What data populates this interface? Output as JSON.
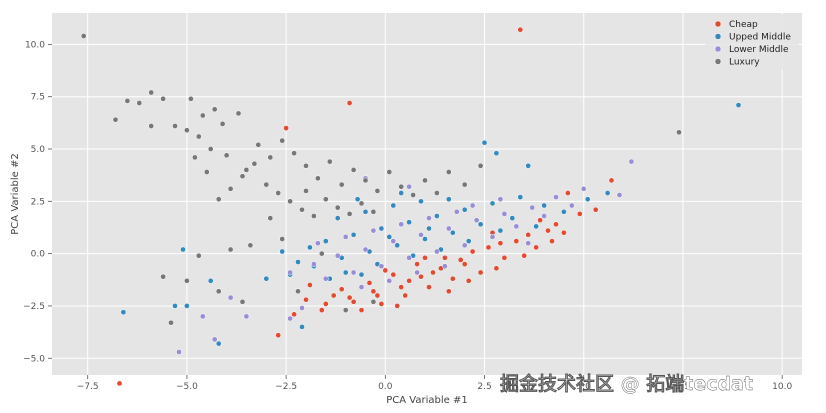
{
  "chart_data": {
    "type": "scatter",
    "title": "",
    "xlabel": "PCA Variable #1",
    "ylabel": "PCA Variable #2",
    "xlim": [
      -8.4,
      10.5
    ],
    "ylim": [
      -5.8,
      11.5
    ],
    "xticks": [
      -7.5,
      -5.0,
      -2.5,
      0.0,
      2.5,
      5.0,
      7.5,
      10.0
    ],
    "xtick_labels": [
      "−7.5",
      "−5.0",
      "−2.5",
      "0.0",
      "2.5",
      "5.0",
      "7.5",
      "10.0"
    ],
    "yticks": [
      -5.0,
      -2.5,
      0.0,
      2.5,
      5.0,
      7.5,
      10.0
    ],
    "ytick_labels": [
      "−5.0",
      "−2.5",
      "0.0",
      "2.5",
      "5.0",
      "7.5",
      "10.0"
    ],
    "grid": true,
    "legend_position": "top-right",
    "series": [
      {
        "name": "Cheap",
        "color": "#E24A33",
        "points": [
          [
            3.4,
            10.7
          ],
          [
            -0.9,
            7.2
          ],
          [
            -2.5,
            6.0
          ],
          [
            -6.7,
            -6.2
          ],
          [
            -2.7,
            -3.9
          ],
          [
            4.6,
            2.9
          ],
          [
            5.7,
            3.5
          ],
          [
            5.3,
            2.1
          ],
          [
            4.1,
            1.1
          ],
          [
            3.3,
            0.6
          ],
          [
            2.6,
            0.3
          ],
          [
            1.9,
            -0.3
          ],
          [
            1.4,
            -0.7
          ],
          [
            0.9,
            -1.1
          ],
          [
            0.4,
            -1.6
          ],
          [
            -0.2,
            -2.0
          ],
          [
            -0.8,
            -2.3
          ],
          [
            -1.5,
            -2.4
          ],
          [
            -2.0,
            -2.2
          ],
          [
            -1.1,
            -1.7
          ],
          [
            -0.4,
            -1.4
          ],
          [
            0.2,
            -1.0
          ],
          [
            0.8,
            -0.5
          ],
          [
            1.5,
            -0.2
          ],
          [
            2.2,
            0.1
          ],
          [
            2.9,
            0.5
          ],
          [
            3.6,
            0.9
          ],
          [
            4.3,
            1.4
          ],
          [
            4.9,
            1.9
          ],
          [
            2.4,
            -0.9
          ],
          [
            1.7,
            -1.2
          ],
          [
            1.1,
            -1.6
          ],
          [
            0.5,
            -2.0
          ],
          [
            -0.1,
            -2.4
          ],
          [
            -0.6,
            -2.7
          ],
          [
            -1.3,
            -2.0
          ],
          [
            -1.9,
            -1.5
          ],
          [
            3.0,
            -0.2
          ],
          [
            3.8,
            0.3
          ],
          [
            4.5,
            1.0
          ],
          [
            2.0,
            -0.5
          ],
          [
            1.2,
            -0.9
          ],
          [
            0.6,
            -1.3
          ],
          [
            -0.3,
            -1.8
          ],
          [
            -0.9,
            -2.1
          ],
          [
            3.9,
            1.6
          ],
          [
            2.7,
            1.0
          ],
          [
            1.0,
            -0.2
          ],
          [
            0.0,
            -0.8
          ],
          [
            -2.3,
            -2.9
          ],
          [
            1.6,
            -1.8
          ],
          [
            2.1,
            -1.3
          ],
          [
            2.8,
            -0.7
          ],
          [
            3.5,
            -0.1
          ],
          [
            4.2,
            0.6
          ],
          [
            0.3,
            -2.5
          ],
          [
            -1.6,
            -2.7
          ]
        ]
      },
      {
        "name": "Upped Middle",
        "color": "#348ABD",
        "points": [
          [
            8.9,
            7.1
          ],
          [
            -6.6,
            -2.8
          ],
          [
            -5.3,
            -2.5
          ],
          [
            -4.2,
            -4.3
          ],
          [
            -5.0,
            -2.5
          ],
          [
            -3.0,
            -1.2
          ],
          [
            -4.4,
            -1.3
          ],
          [
            -5.1,
            0.2
          ],
          [
            -2.1,
            -3.5
          ],
          [
            5.6,
            2.9
          ],
          [
            2.8,
            4.8
          ],
          [
            5.1,
            2.6
          ],
          [
            4.0,
            2.3
          ],
          [
            3.2,
            1.7
          ],
          [
            2.4,
            1.4
          ],
          [
            1.7,
            1.0
          ],
          [
            1.0,
            0.7
          ],
          [
            0.3,
            0.4
          ],
          [
            -0.4,
            0.1
          ],
          [
            -1.1,
            -0.2
          ],
          [
            -1.8,
            -0.6
          ],
          [
            -2.4,
            -1.0
          ],
          [
            -1.5,
            0.6
          ],
          [
            -0.8,
            0.9
          ],
          [
            -0.1,
            1.2
          ],
          [
            0.6,
            1.5
          ],
          [
            1.3,
            1.8
          ],
          [
            2.0,
            2.1
          ],
          [
            2.7,
            2.4
          ],
          [
            3.4,
            2.7
          ],
          [
            -1.2,
            1.7
          ],
          [
            -0.5,
            2.0
          ],
          [
            0.2,
            2.3
          ],
          [
            0.9,
            2.5
          ],
          [
            -1.9,
            0.3
          ],
          [
            -2.6,
            0.1
          ],
          [
            2.1,
            0.6
          ],
          [
            1.4,
            0.2
          ],
          [
            0.7,
            -0.1
          ],
          [
            -0.2,
            -0.5
          ],
          [
            -1.0,
            -0.9
          ],
          [
            -0.7,
            2.6
          ],
          [
            0.4,
            2.9
          ],
          [
            1.6,
            2.6
          ],
          [
            4.5,
            2.0
          ],
          [
            3.8,
            1.3
          ],
          [
            2.9,
            1.1
          ],
          [
            -2.2,
            -0.4
          ],
          [
            -1.4,
            -1.2
          ],
          [
            -0.6,
            -1.0
          ],
          [
            0.1,
            0.8
          ],
          [
            1.1,
            1.2
          ],
          [
            2.5,
            5.3
          ],
          [
            3.6,
            4.2
          ]
        ]
      },
      {
        "name": "Lower Middle",
        "color": "#988ED5",
        "points": [
          [
            6.2,
            4.4
          ],
          [
            5.9,
            2.8
          ],
          [
            5.0,
            3.1
          ],
          [
            4.3,
            2.7
          ],
          [
            3.7,
            2.2
          ],
          [
            3.0,
            1.9
          ],
          [
            2.3,
            1.6
          ],
          [
            1.6,
            1.2
          ],
          [
            0.9,
            0.9
          ],
          [
            0.2,
            0.6
          ],
          [
            -0.5,
            0.2
          ],
          [
            -1.2,
            -0.1
          ],
          [
            -1.8,
            -0.5
          ],
          [
            -2.4,
            -0.9
          ],
          [
            -5.2,
            -4.7
          ],
          [
            -4.3,
            -4.1
          ],
          [
            -3.9,
            -2.1
          ],
          [
            -3.5,
            -3.0
          ],
          [
            -2.4,
            -3.1
          ],
          [
            -4.6,
            -3.0
          ],
          [
            2.7,
            0.8
          ],
          [
            2.0,
            0.4
          ],
          [
            1.3,
            0.1
          ],
          [
            0.6,
            -0.2
          ],
          [
            -0.1,
            -0.6
          ],
          [
            -0.8,
            -0.9
          ],
          [
            -1.5,
            -1.2
          ],
          [
            3.3,
            1.3
          ],
          [
            4.0,
            1.8
          ],
          [
            4.7,
            2.3
          ],
          [
            1.8,
            2.0
          ],
          [
            1.1,
            1.7
          ],
          [
            0.4,
            1.4
          ],
          [
            -0.3,
            1.1
          ],
          [
            -1.0,
            0.8
          ],
          [
            -1.7,
            0.5
          ],
          [
            2.9,
            2.6
          ],
          [
            2.2,
            2.3
          ],
          [
            1.5,
            -0.6
          ],
          [
            0.8,
            -0.9
          ],
          [
            0.1,
            -1.3
          ],
          [
            -0.6,
            -1.6
          ],
          [
            3.6,
            0.5
          ],
          [
            -0.5,
            3.6
          ],
          [
            0.6,
            3.2
          ],
          [
            -2.1,
            -2.6
          ]
        ]
      },
      {
        "name": "Luxury",
        "color": "#777777",
        "points": [
          [
            -7.6,
            10.4
          ],
          [
            7.4,
            5.8
          ],
          [
            -6.5,
            7.3
          ],
          [
            -6.2,
            7.2
          ],
          [
            -5.9,
            7.7
          ],
          [
            -5.6,
            7.4
          ],
          [
            -5.3,
            6.1
          ],
          [
            -4.9,
            7.4
          ],
          [
            -4.6,
            6.6
          ],
          [
            -4.3,
            6.9
          ],
          [
            -4.1,
            6.2
          ],
          [
            -5.0,
            5.9
          ],
          [
            -4.7,
            5.6
          ],
          [
            -4.4,
            5.0
          ],
          [
            -4.0,
            4.7
          ],
          [
            -3.7,
            6.7
          ],
          [
            -3.5,
            4.0
          ],
          [
            -3.2,
            5.2
          ],
          [
            -2.9,
            4.6
          ],
          [
            -2.6,
            5.4
          ],
          [
            -2.3,
            4.8
          ],
          [
            -2.0,
            4.2
          ],
          [
            -1.7,
            3.6
          ],
          [
            -1.4,
            4.4
          ],
          [
            -1.1,
            3.3
          ],
          [
            -0.8,
            4.0
          ],
          [
            -0.5,
            3.5
          ],
          [
            -0.2,
            3.0
          ],
          [
            0.1,
            3.9
          ],
          [
            0.4,
            3.2
          ],
          [
            0.7,
            2.8
          ],
          [
            1.0,
            3.5
          ],
          [
            1.3,
            2.9
          ],
          [
            1.6,
            3.9
          ],
          [
            2.0,
            3.3
          ],
          [
            2.4,
            4.2
          ],
          [
            -6.8,
            6.4
          ],
          [
            -5.9,
            6.1
          ],
          [
            -3.0,
            3.3
          ],
          [
            -2.7,
            2.9
          ],
          [
            -2.4,
            2.5
          ],
          [
            -2.1,
            2.1
          ],
          [
            -1.8,
            1.8
          ],
          [
            -1.5,
            2.6
          ],
          [
            -1.2,
            2.2
          ],
          [
            -0.9,
            1.9
          ],
          [
            -0.6,
            2.4
          ],
          [
            -0.3,
            2.0
          ],
          [
            -3.3,
            4.3
          ],
          [
            -3.6,
            3.7
          ],
          [
            -3.9,
            3.1
          ],
          [
            -4.2,
            2.6
          ],
          [
            -4.5,
            3.9
          ],
          [
            -4.8,
            4.6
          ],
          [
            -2.0,
            3.0
          ],
          [
            -2.9,
            1.7
          ],
          [
            -3.4,
            0.4
          ],
          [
            -3.9,
            0.2
          ],
          [
            -4.7,
            -0.1
          ],
          [
            -5.0,
            -1.3
          ],
          [
            -5.6,
            -1.1
          ],
          [
            -2.6,
            0.7
          ],
          [
            -1.6,
            0.0
          ],
          [
            -5.4,
            -3.3
          ],
          [
            -4.2,
            -1.8
          ],
          [
            -3.6,
            -2.3
          ],
          [
            -2.2,
            -1.8
          ],
          [
            -1.0,
            -2.7
          ],
          [
            -0.3,
            -2.3
          ]
        ]
      }
    ]
  },
  "watermark": {
    "main": "掘金技术社区 @ 拓端tecdat",
    "sub": "CSDN @拓端研究室"
  }
}
